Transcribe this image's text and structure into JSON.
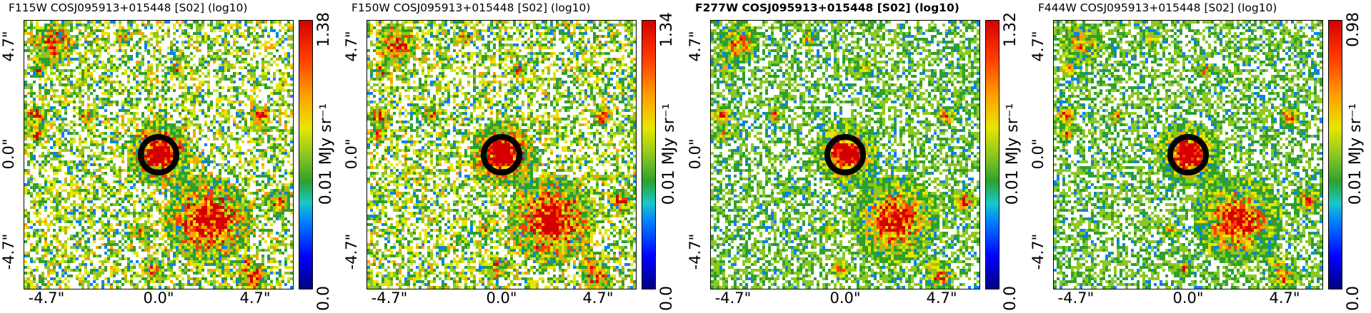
{
  "panels": [
    {
      "title": "F115W COSJ095913+015448 [S02] (log10)",
      "bold": false,
      "colorbar_max": "1.38",
      "colorbar_mid": "0.01 MJy sr⁻¹",
      "colorbar_min": "0.0",
      "filter": "F115W"
    },
    {
      "title": "F150W COSJ095913+015448 [S02] (log10)",
      "bold": false,
      "colorbar_max": "1.34",
      "colorbar_mid": "0.01 MJy sr⁻¹",
      "colorbar_min": "0.0",
      "filter": "F150W"
    },
    {
      "title": "F277W COSJ095913+015448 [S02] (log10)",
      "bold": true,
      "colorbar_max": "1.32",
      "colorbar_mid": "0.01 MJy sr⁻¹",
      "colorbar_min": "0.0",
      "filter": "F277W"
    },
    {
      "title": "F444W COSJ095913+015448 [S02] (log10)",
      "bold": false,
      "colorbar_max": "0.98",
      "colorbar_mid": "0.01 MJy sr⁻¹",
      "colorbar_min": "0.0",
      "filter": "F444W"
    }
  ],
  "axis_ticks": {
    "x": [
      "-4.7\"",
      "0.0\"",
      "4.7\""
    ],
    "y": [
      "4.7\"",
      "0.0\"",
      "-4.7\""
    ]
  },
  "colors": {
    "colormap": [
      "#00007f",
      "#0000ff",
      "#0080ff",
      "#2ea02e",
      "#8cc820",
      "#e6e600",
      "#ffa000",
      "#ff3c00",
      "#d40000"
    ],
    "circle": "#000000"
  }
}
